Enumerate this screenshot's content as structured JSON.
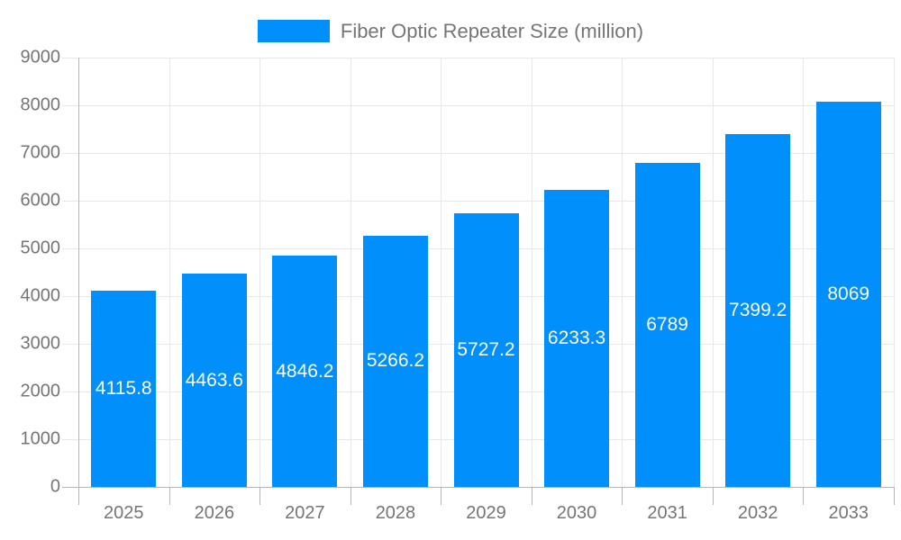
{
  "chart_data": {
    "type": "bar",
    "title": "",
    "legend": "Fiber Optic Repeater Size (million)",
    "legend_position": "top",
    "categories": [
      "2025",
      "2026",
      "2027",
      "2028",
      "2029",
      "2030",
      "2031",
      "2032",
      "2033"
    ],
    "values": [
      4115.8,
      4463.6,
      4846.2,
      5266.2,
      5727.2,
      6233.3,
      6789,
      7399.2,
      8069
    ],
    "value_labels": [
      "4115.8",
      "4463.6",
      "4846.2",
      "5266.2",
      "5727.2",
      "6233.3",
      "6789",
      "7399.2",
      "8069"
    ],
    "xlabel": "",
    "ylabel": "",
    "ylim": [
      0,
      9000
    ],
    "ytick_step": 1000,
    "ytick_labels": [
      "0",
      "1000",
      "2000",
      "3000",
      "4000",
      "5000",
      "6000",
      "7000",
      "8000",
      "9000"
    ],
    "grid": true,
    "colors": {
      "bar": "#008ffb",
      "value_label": "#ffffff",
      "axis_text": "#757575",
      "legend_text": "#757575",
      "gridline": "#e7e7e7",
      "axis_line": "#b6b6b6",
      "background": "#ffffff"
    }
  }
}
